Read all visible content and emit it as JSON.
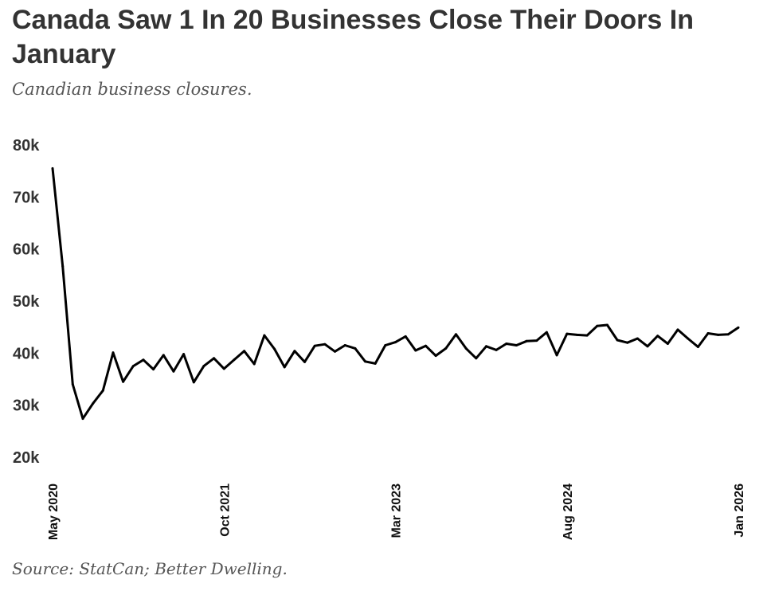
{
  "chart_data": {
    "type": "line",
    "title": "Canada Saw 1 In 20 Businesses Close Their Doors In January",
    "subtitle": "Canadian business closures.",
    "source": "Source: StatCan; Better Dwelling.",
    "xlabel": "",
    "ylabel": "",
    "ylim": [
      20000,
      80000
    ],
    "yticks": [
      {
        "value": 80000,
        "label": "80k"
      },
      {
        "value": 70000,
        "label": "70k"
      },
      {
        "value": 60000,
        "label": "60k"
      },
      {
        "value": 50000,
        "label": "50k"
      },
      {
        "value": 40000,
        "label": "40k"
      },
      {
        "value": 30000,
        "label": "30k"
      },
      {
        "value": 20000,
        "label": "20k"
      }
    ],
    "xticks": [
      {
        "index": 0,
        "label": "May 2020"
      },
      {
        "index": 17,
        "label": "Oct 2021"
      },
      {
        "index": 34,
        "label": "Mar 2023"
      },
      {
        "index": 51,
        "label": "Aug 2024"
      },
      {
        "index": 68,
        "label": "Jan 2026"
      }
    ],
    "grid": false,
    "line_color": "#000000",
    "series": [
      {
        "x": [
          "2020-05",
          "2020-06",
          "2020-07",
          "2020-08",
          "2020-09",
          "2020-10",
          "2020-11",
          "2020-12",
          "2021-01",
          "2021-02",
          "2021-03",
          "2021-04",
          "2021-05",
          "2021-06",
          "2021-07",
          "2021-08",
          "2021-09",
          "2021-10",
          "2021-11",
          "2021-12",
          "2022-01",
          "2022-02",
          "2022-03",
          "2022-04",
          "2022-05",
          "2022-06",
          "2022-07",
          "2022-08",
          "2022-09",
          "2022-10",
          "2022-11",
          "2022-12",
          "2023-01",
          "2023-02",
          "2023-03",
          "2023-04",
          "2023-05",
          "2023-06",
          "2023-07",
          "2023-08",
          "2023-09",
          "2023-10",
          "2023-11",
          "2023-12",
          "2024-01",
          "2024-02",
          "2024-03",
          "2024-04",
          "2024-05",
          "2024-06",
          "2024-07",
          "2024-08",
          "2024-09",
          "2024-10",
          "2024-11",
          "2024-12",
          "2025-01",
          "2025-02",
          "2025-03",
          "2025-04",
          "2025-05",
          "2025-06",
          "2025-07",
          "2025-08",
          "2025-09",
          "2025-10",
          "2025-11",
          "2025-12",
          "2026-01"
        ],
        "values": [
          77800,
          59000,
          36300,
          29700,
          32600,
          35100,
          42400,
          36800,
          39800,
          41000,
          39200,
          41900,
          38800,
          42100,
          36700,
          39800,
          41300,
          39300,
          41000,
          42700,
          40200,
          45700,
          43100,
          39600,
          42700,
          40600,
          43700,
          44000,
          42600,
          43800,
          43200,
          40700,
          40300,
          43800,
          44400,
          45500,
          42800,
          43700,
          41800,
          43200,
          45900,
          43200,
          41300,
          43600,
          42900,
          44100,
          43800,
          44600,
          44700,
          46300,
          41900,
          46000,
          45800,
          45700,
          47500,
          47700,
          44800,
          44300,
          45100,
          43600,
          45600,
          44100,
          46800,
          45100,
          43500,
          46100,
          45800,
          45900,
          47200
        ]
      }
    ]
  }
}
